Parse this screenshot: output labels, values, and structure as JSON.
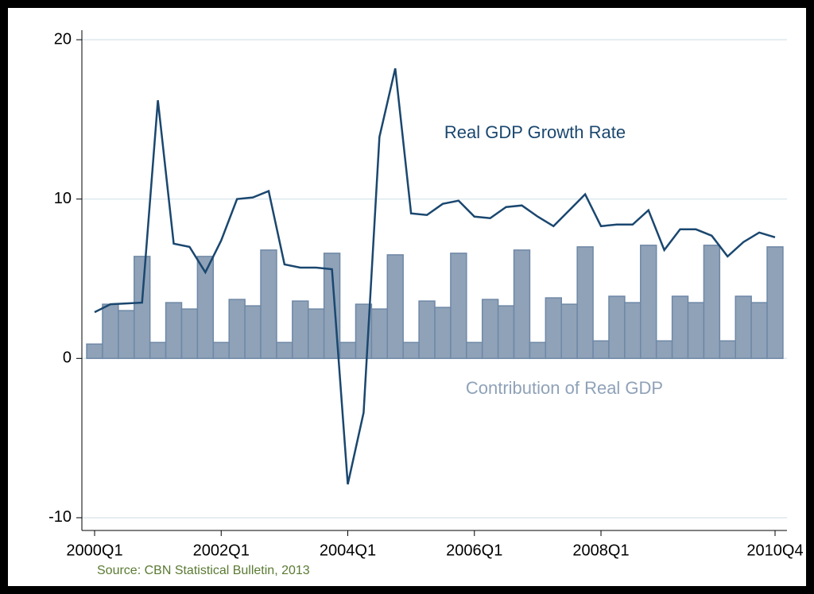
{
  "chart_data": {
    "type": "combo",
    "categories": [
      "2000Q1",
      null,
      null,
      null,
      null,
      null,
      null,
      null,
      "2002Q1",
      null,
      null,
      null,
      null,
      null,
      null,
      null,
      "2004Q1",
      null,
      null,
      null,
      null,
      null,
      null,
      null,
      "2006Q1",
      null,
      null,
      null,
      null,
      null,
      null,
      null,
      "2008Q1",
      null,
      null,
      null,
      null,
      null,
      null,
      null,
      null,
      null,
      null,
      "2010Q4"
    ],
    "series": [
      {
        "name": "Contribution of Real GDP",
        "type": "bar",
        "color": "#8fa2b8",
        "values": [
          0.9,
          3.4,
          3.0,
          6.4,
          1.0,
          3.5,
          3.1,
          6.4,
          1.0,
          3.7,
          3.3,
          6.8,
          1.0,
          3.6,
          3.1,
          6.6,
          1.0,
          3.4,
          3.1,
          6.5,
          1.0,
          3.6,
          3.2,
          6.6,
          1.0,
          3.7,
          3.3,
          6.8,
          1.0,
          3.8,
          3.4,
          7.0,
          1.1,
          3.9,
          3.5,
          7.1,
          1.1,
          3.9,
          3.5,
          7.1,
          1.1,
          3.9,
          3.5,
          7.0
        ]
      },
      {
        "name": "Real GDP Growth Rate",
        "type": "line",
        "color": "#1a476f",
        "values": [
          2.9,
          3.4,
          3.45,
          3.5,
          16.2,
          7.2,
          7.0,
          5.4,
          7.4,
          10.0,
          10.1,
          10.5,
          5.9,
          5.7,
          5.7,
          5.6,
          -7.9,
          -3.4,
          13.9,
          18.2,
          9.1,
          9.0,
          9.7,
          9.9,
          8.9,
          8.8,
          9.5,
          9.6,
          8.9,
          8.3,
          9.3,
          10.3,
          8.3,
          8.4,
          8.4,
          9.3,
          6.8,
          8.1,
          8.1,
          7.7,
          6.4,
          7.3,
          7.9,
          7.6
        ]
      }
    ],
    "ylim": [
      -10.8,
      20.6
    ],
    "yticks": [
      -10,
      0,
      10,
      20
    ],
    "grid": true,
    "source": "Source: CBN Statistical Bulletin, 2013"
  }
}
